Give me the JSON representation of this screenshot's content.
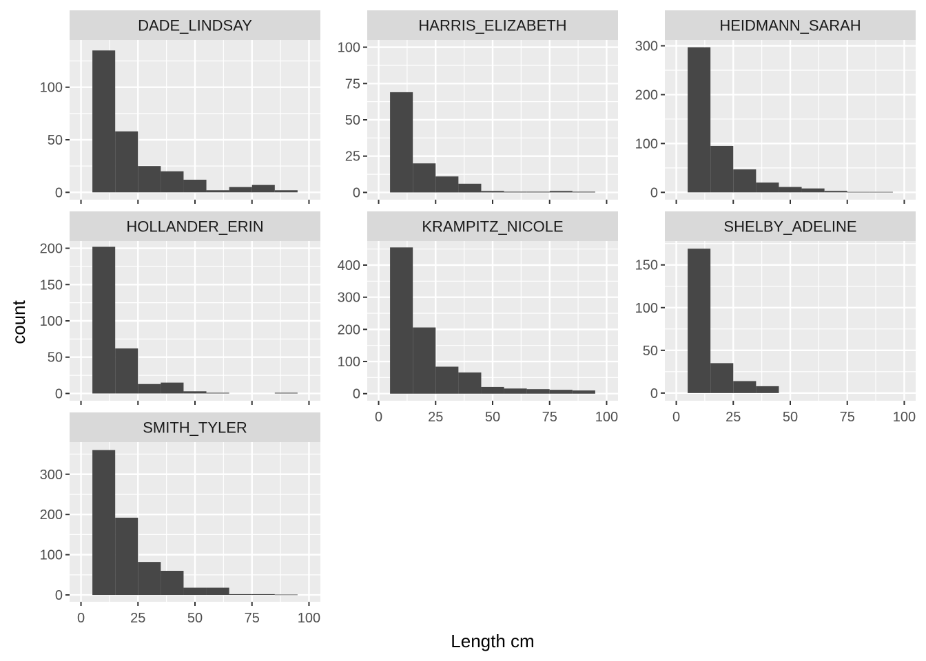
{
  "chart_data": {
    "type": "bar",
    "subtype": "faceted-histogram",
    "xlabel": "Length cm",
    "ylabel": "count",
    "x_breaks": [
      0,
      25,
      50,
      75,
      100
    ],
    "xlim": [
      -5,
      105
    ],
    "bin_edges": [
      5,
      15,
      25,
      35,
      45,
      55,
      65,
      75,
      85,
      95
    ],
    "grid": true,
    "facet_columns": 3,
    "panel_background": "#ebebeb",
    "strip_background": "#d9d9d9",
    "bar_color": "#474747",
    "grid_color": "#ffffff",
    "panels": [
      {
        "name": "DADE_LINDSAY",
        "ylim": [
          -7,
          145
        ],
        "y_breaks": [
          0,
          50,
          100
        ],
        "values": [
          135,
          58,
          25,
          20,
          12,
          2,
          5,
          7,
          2
        ]
      },
      {
        "name": "HARRIS_ELIZABETH",
        "ylim": [
          -5,
          105
        ],
        "y_breaks": [
          0,
          25,
          50,
          75,
          100
        ],
        "values": [
          69,
          20,
          11,
          6,
          1,
          0.5,
          0.5,
          1,
          0.5
        ]
      },
      {
        "name": "HEIDMANN_SARAH",
        "ylim": [
          -15,
          312
        ],
        "y_breaks": [
          0,
          100,
          200,
          300
        ],
        "values": [
          297,
          95,
          47,
          20,
          11,
          8,
          3,
          1,
          1
        ]
      },
      {
        "name": "HOLLANDER_ERIN",
        "ylim": [
          -10,
          210
        ],
        "y_breaks": [
          0,
          50,
          100,
          150,
          200
        ],
        "values": [
          202,
          62,
          13,
          15,
          3,
          1,
          0,
          0,
          1
        ]
      },
      {
        "name": "KRAMPITZ_NICOLE",
        "ylim": [
          -22,
          475
        ],
        "y_breaks": [
          0,
          100,
          200,
          300,
          400
        ],
        "values": [
          455,
          206,
          84,
          66,
          21,
          16,
          14,
          12,
          10
        ]
      },
      {
        "name": "SHELBY_ADELINE",
        "ylim": [
          -9,
          178
        ],
        "y_breaks": [
          0,
          50,
          100,
          150
        ],
        "values": [
          169,
          35,
          14,
          8,
          0,
          0,
          0,
          0,
          0
        ]
      },
      {
        "name": "SMITH_TYLER",
        "ylim": [
          -17,
          380
        ],
        "y_breaks": [
          0,
          100,
          200,
          300
        ],
        "values": [
          360,
          192,
          82,
          60,
          18,
          18,
          2,
          2,
          1
        ]
      }
    ]
  }
}
